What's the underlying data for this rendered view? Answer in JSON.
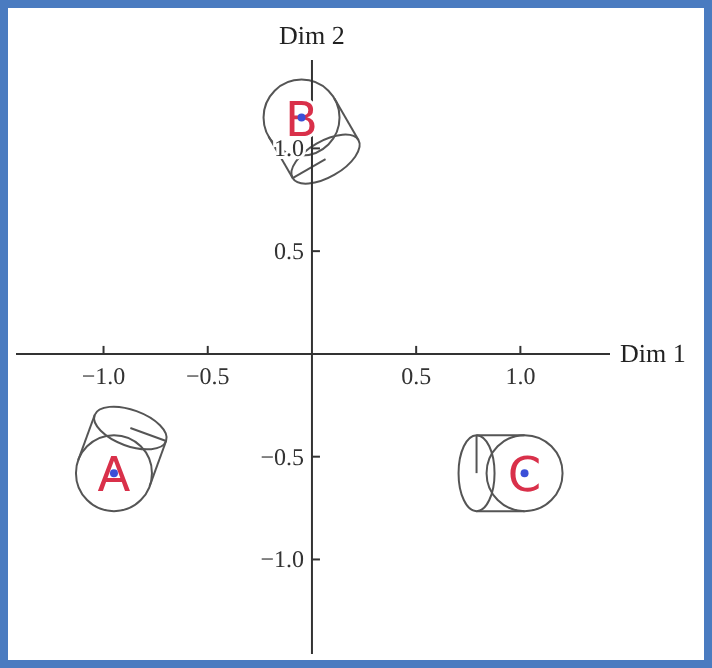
{
  "chart_data": {
    "type": "scatter",
    "xlabel": "Dim 1",
    "ylabel": "Dim 2",
    "x": [
      -0.95,
      -0.05,
      1.02
    ],
    "series": [
      {
        "color": "#3b4fd8",
        "values": [
          -0.58,
          1.15,
          -0.58
        ]
      }
    ],
    "marker": "circle",
    "annotations": [
      {
        "text": "A",
        "x": -0.95,
        "y": -0.58
      },
      {
        "text": "B",
        "x": -0.05,
        "y": 1.15
      },
      {
        "text": "C",
        "x": 1.02,
        "y": -0.58
      }
    ],
    "xlim": [
      -1.42,
      1.43
    ],
    "ylim": [
      -1.46,
      1.43
    ],
    "xticks": [
      {
        "value": -1,
        "label": "−1.0"
      },
      {
        "value": -0.5,
        "label": "−0.5"
      },
      0.5,
      {
        "value": 1,
        "label": "1.0"
      }
    ],
    "yticks": [
      {
        "value": -1,
        "label": "−1.0"
      },
      {
        "value": -0.5,
        "label": "−0.5"
      },
      0.5,
      {
        "value": 1,
        "label": "1.0"
      }
    ],
    "grid": false
  }
}
